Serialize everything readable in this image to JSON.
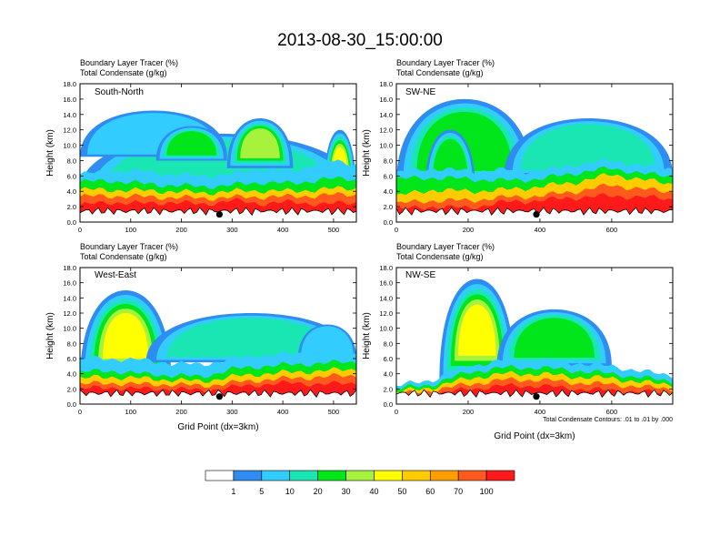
{
  "title": "2013-08-30_15:00:00",
  "left_subtitle": "Boundary Layer Tracer   (%)",
  "right_subtitle": "Total Condensate   (g/kg)",
  "ylabel": "Height (km)",
  "xlabel": "Grid Point (dx=3km)",
  "contour_note": "Total Condensate Contours: .01 to .01 by .000",
  "colors": {
    "c0": "#ffffff",
    "c1": "#2f8cf0",
    "c2": "#33ccff",
    "c3": "#19e6b3",
    "c4": "#00e61a",
    "c5": "#a6f23d",
    "c6": "#ffff00",
    "c7": "#ffcc00",
    "c8": "#ff9e00",
    "c9": "#ff5a1e",
    "c10": "#ff1a1a"
  },
  "colorbar": {
    "labels": [
      "1",
      "5",
      "10",
      "20",
      "30",
      "40",
      "50",
      "60",
      "70",
      "100"
    ]
  },
  "chart_data": [
    {
      "type": "heatmap",
      "name": "South-North",
      "xlim": [
        0,
        545
      ],
      "ylim": [
        0,
        18
      ],
      "xticks": [
        0,
        100,
        200,
        300,
        400,
        500
      ],
      "yticks": [
        "0.0",
        "2.0",
        "4.0",
        "6.0",
        "8.0",
        "10.0",
        "12.0",
        "14.0",
        "16.0",
        "18.0"
      ],
      "marker": {
        "x": 275,
        "y": 1.0
      },
      "lower_levels": {
        "x": [
          0,
          60,
          120,
          180,
          240,
          300,
          360,
          420,
          480,
          545
        ],
        "c2": [
          6.2,
          6.6,
          6.6,
          6.2,
          6.0,
          6.2,
          7.0,
          6.5,
          8.0,
          7.5
        ],
        "c4": [
          5.2,
          5.4,
          5.0,
          4.8,
          4.6,
          4.8,
          5.2,
          5.0,
          5.6,
          5.6
        ],
        "c7": [
          4.2,
          4.2,
          4.1,
          4.0,
          3.8,
          4.0,
          4.1,
          4.0,
          4.3,
          4.4
        ],
        "c9": [
          3.3,
          3.4,
          3.3,
          3.2,
          3.1,
          3.2,
          3.3,
          3.3,
          3.5,
          3.6
        ],
        "c10": [
          2.2,
          2.6,
          2.4,
          2.6,
          2.3,
          2.8,
          2.4,
          2.6,
          2.3,
          2.6
        ]
      },
      "plumes": [
        {
          "x": [
            0,
            545
          ],
          "bottom": 4.0,
          "top": 11.5,
          "fade": 0.4
        },
        {
          "x": [
            0,
            290
          ],
          "bottom": 8.5,
          "top": 14.5,
          "fade": 0.3
        },
        {
          "x": [
            150,
            290
          ],
          "bottom": 8.0,
          "top": 12.5,
          "fade": 0.5
        },
        {
          "x": [
            290,
            420
          ],
          "bottom": 7.0,
          "top": 13.5,
          "fade": 0.7
        },
        {
          "x": [
            480,
            545
          ],
          "bottom": 3.0,
          "top": 12.0,
          "fade": 0.8
        }
      ]
    },
    {
      "type": "heatmap",
      "name": "SW-NE",
      "xlim": [
        0,
        770
      ],
      "ylim": [
        0,
        18
      ],
      "xticks": [
        0,
        200,
        400,
        600
      ],
      "yticks": [
        "0.0",
        "2.0",
        "4.0",
        "6.0",
        "8.0",
        "10.0",
        "12.0",
        "14.0",
        "16.0",
        "18.0"
      ],
      "marker": {
        "x": 390,
        "y": 1.0
      },
      "lower_levels": {
        "x": [
          0,
          100,
          200,
          300,
          400,
          500,
          600,
          700,
          770
        ],
        "c2": [
          6.4,
          7.0,
          6.6,
          6.8,
          6.5,
          7.5,
          8.0,
          7.2,
          7.0
        ],
        "c4": [
          5.6,
          5.8,
          5.6,
          5.4,
          5.6,
          6.4,
          7.0,
          6.2,
          6.0
        ],
        "c7": [
          3.4,
          4.2,
          4.0,
          4.2,
          4.6,
          5.2,
          6.2,
          5.4,
          5.0
        ],
        "c9": [
          2.4,
          2.8,
          2.8,
          3.2,
          3.4,
          4.0,
          4.8,
          4.2,
          3.9
        ],
        "c10": [
          1.6,
          2.0,
          1.8,
          2.6,
          2.8,
          3.2,
          3.4,
          3.2,
          3.0
        ]
      },
      "plumes": [
        {
          "x": [
            0,
            380
          ],
          "bottom": 5.0,
          "top": 16.0,
          "fade": 0.6
        },
        {
          "x": [
            300,
            770
          ],
          "bottom": 6.0,
          "top": 13.5,
          "fade": 0.4
        },
        {
          "x": [
            80,
            220
          ],
          "bottom": 4.0,
          "top": 12.0,
          "fade": 0.6
        }
      ]
    },
    {
      "type": "heatmap",
      "name": "West-East",
      "xlim": [
        0,
        545
      ],
      "ylim": [
        0,
        18
      ],
      "xticks": [
        0,
        100,
        200,
        300,
        400,
        500
      ],
      "yticks": [
        "0.0",
        "2.0",
        "4.0",
        "6.0",
        "8.0",
        "10.0",
        "12.0",
        "14.0",
        "16.0",
        "18.0"
      ],
      "marker": {
        "x": 275,
        "y": 1.0
      },
      "lower_levels": {
        "x": [
          0,
          60,
          120,
          180,
          240,
          300,
          360,
          420,
          480,
          545
        ],
        "c2": [
          6.0,
          6.0,
          5.8,
          5.4,
          5.2,
          6.0,
          6.4,
          6.6,
          6.8,
          6.8
        ],
        "c4": [
          4.2,
          4.4,
          4.0,
          3.8,
          3.6,
          4.6,
          5.0,
          5.2,
          5.4,
          5.6
        ],
        "c7": [
          3.4,
          3.6,
          3.4,
          3.2,
          3.0,
          3.6,
          4.0,
          4.2,
          4.4,
          4.6
        ],
        "c9": [
          2.6,
          2.8,
          2.6,
          2.6,
          2.4,
          2.8,
          3.2,
          3.4,
          3.6,
          3.8
        ],
        "c10": [
          2.0,
          2.2,
          2.0,
          2.0,
          1.8,
          2.2,
          2.6,
          2.8,
          2.6,
          2.8
        ]
      },
      "plumes": [
        {
          "x": [
            0,
            180
          ],
          "bottom": 3.0,
          "top": 15.0,
          "fade": 0.9
        },
        {
          "x": [
            130,
            545
          ],
          "bottom": 5.5,
          "top": 12.0,
          "fade": 0.4
        },
        {
          "x": [
            430,
            545
          ],
          "bottom": 6.0,
          "top": 10.5,
          "fade": 0.3
        }
      ]
    },
    {
      "type": "heatmap",
      "name": "NW-SE",
      "xlim": [
        0,
        770
      ],
      "ylim": [
        0,
        18
      ],
      "xticks": [
        0,
        200,
        400,
        600
      ],
      "yticks": [
        "0.0",
        "2.0",
        "4.0",
        "6.0",
        "8.0",
        "10.0",
        "12.0",
        "14.0",
        "16.0",
        "18.0"
      ],
      "marker": {
        "x": 390,
        "y": 1.0
      },
      "lower_levels": {
        "x": [
          0,
          100,
          200,
          300,
          400,
          500,
          600,
          700,
          770
        ],
        "c2": [
          2.4,
          3.2,
          5.0,
          5.8,
          5.8,
          5.4,
          5.0,
          4.2,
          3.8
        ],
        "c4": [
          2.0,
          2.6,
          4.2,
          4.8,
          4.8,
          4.4,
          4.0,
          3.4,
          3.0
        ],
        "c7": [
          1.6,
          2.2,
          3.4,
          4.0,
          4.0,
          3.6,
          3.4,
          2.8,
          2.6
        ],
        "c9": [
          1.2,
          1.8,
          2.6,
          3.2,
          3.2,
          2.8,
          2.6,
          2.2,
          2.0
        ],
        "c10": [
          0.8,
          1.2,
          2.0,
          2.4,
          2.4,
          2.0,
          1.8,
          1.6,
          1.4
        ]
      },
      "plumes": [
        {
          "x": [
            120,
            330
          ],
          "bottom": 3.0,
          "top": 16.5,
          "fade": 0.9
        },
        {
          "x": [
            280,
            600
          ],
          "bottom": 5.0,
          "top": 12.5,
          "fade": 0.6
        }
      ]
    }
  ]
}
